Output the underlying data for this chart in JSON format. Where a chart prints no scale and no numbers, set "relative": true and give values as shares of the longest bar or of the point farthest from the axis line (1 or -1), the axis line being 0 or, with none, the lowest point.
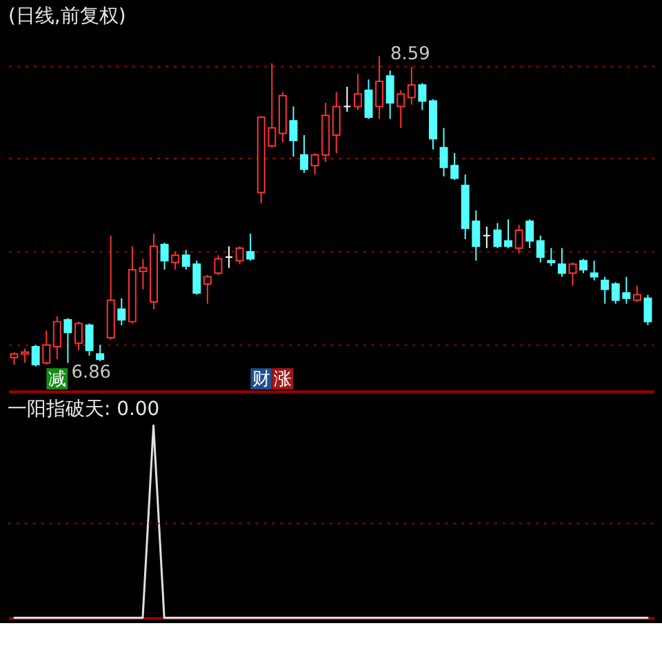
{
  "chart_data": [
    {
      "type": "candlestick",
      "title": "(日线,前复权)",
      "categories": [
        null,
        null,
        null,
        null,
        null,
        null,
        null,
        null,
        null,
        null,
        null,
        null,
        null,
        null,
        null,
        null,
        null,
        null,
        null,
        null,
        null,
        null,
        null,
        null,
        null,
        null,
        null,
        null,
        null,
        null,
        null,
        null,
        null,
        null,
        null,
        null,
        null,
        null,
        null,
        null,
        null,
        null,
        null,
        null,
        null,
        null,
        null,
        null,
        null,
        null,
        null,
        null,
        null,
        null,
        null,
        null,
        null,
        null,
        null,
        null
      ],
      "ohlc": [
        [
          6.91,
          6.94,
          6.87,
          6.93
        ],
        [
          6.93,
          6.96,
          6.88,
          6.94
        ],
        [
          6.97,
          6.98,
          6.86,
          6.87
        ],
        [
          6.88,
          7.06,
          6.87,
          6.98
        ],
        [
          6.97,
          7.14,
          6.9,
          7.11
        ],
        [
          7.12,
          7.13,
          6.88,
          7.05
        ],
        [
          6.99,
          7.11,
          6.95,
          7.1
        ],
        [
          7.09,
          7.1,
          6.92,
          6.95
        ],
        [
          6.93,
          6.98,
          6.89,
          6.9
        ],
        [
          7.02,
          7.59,
          7.01,
          7.23
        ],
        [
          7.18,
          7.24,
          7.09,
          7.12
        ],
        [
          7.11,
          7.53,
          7.1,
          7.4
        ],
        [
          7.39,
          7.46,
          7.29,
          7.41
        ],
        [
          7.22,
          7.6,
          7.18,
          7.53
        ],
        [
          7.54,
          7.55,
          7.4,
          7.45
        ],
        [
          7.44,
          7.5,
          7.4,
          7.48
        ],
        [
          7.48,
          7.51,
          7.4,
          7.42
        ],
        [
          7.43,
          7.45,
          7.26,
          7.27
        ],
        [
          7.32,
          7.37,
          7.21,
          7.36
        ],
        [
          7.38,
          7.48,
          7.37,
          7.46
        ],
        [
          7.47,
          7.53,
          7.41,
          7.47
        ],
        [
          7.45,
          7.53,
          7.43,
          7.52
        ],
        [
          7.5,
          7.6,
          7.45,
          7.46
        ],
        [
          7.83,
          8.25,
          7.77,
          8.25
        ],
        [
          8.09,
          8.55,
          8.08,
          8.19
        ],
        [
          8.16,
          8.39,
          8.11,
          8.37
        ],
        [
          8.23,
          8.31,
          8.03,
          8.12
        ],
        [
          8.04,
          8.15,
          7.94,
          7.96
        ],
        [
          7.98,
          8.05,
          7.93,
          8.04
        ],
        [
          8.04,
          8.33,
          8.0,
          8.26
        ],
        [
          8.15,
          8.39,
          8.05,
          8.31
        ],
        [
          8.31,
          8.42,
          8.28,
          8.31
        ],
        [
          8.31,
          8.49,
          8.29,
          8.38
        ],
        [
          8.4,
          8.46,
          8.24,
          8.25
        ],
        [
          8.31,
          8.59,
          8.24,
          8.45
        ],
        [
          8.48,
          8.51,
          8.24,
          8.33
        ],
        [
          8.31,
          8.4,
          8.19,
          8.38
        ],
        [
          8.36,
          8.53,
          8.32,
          8.43
        ],
        [
          8.43,
          8.44,
          8.29,
          8.34
        ],
        [
          8.34,
          8.35,
          8.07,
          8.13
        ],
        [
          8.08,
          8.19,
          7.92,
          7.97
        ],
        [
          7.98,
          8.05,
          7.9,
          7.91
        ],
        [
          7.87,
          7.93,
          7.57,
          7.63
        ],
        [
          7.67,
          7.73,
          7.45,
          7.53
        ],
        [
          7.59,
          7.64,
          7.52,
          7.59
        ],
        [
          7.62,
          7.66,
          7.52,
          7.53
        ],
        [
          7.56,
          7.68,
          7.52,
          7.53
        ],
        [
          7.52,
          7.65,
          7.49,
          7.62
        ],
        [
          7.67,
          7.68,
          7.52,
          7.56
        ],
        [
          7.56,
          7.59,
          7.44,
          7.47
        ],
        [
          7.45,
          7.52,
          7.42,
          7.44
        ],
        [
          7.43,
          7.52,
          7.36,
          7.38
        ],
        [
          7.38,
          7.44,
          7.31,
          7.43
        ],
        [
          7.45,
          7.46,
          7.38,
          7.4
        ],
        [
          7.38,
          7.45,
          7.34,
          7.36
        ],
        [
          7.34,
          7.36,
          7.21,
          7.29
        ],
        [
          7.32,
          7.33,
          7.21,
          7.23
        ],
        [
          7.27,
          7.36,
          7.21,
          7.24
        ],
        [
          7.23,
          7.31,
          7.22,
          7.26
        ],
        [
          7.24,
          7.26,
          7.09,
          7.11
        ]
      ],
      "colors": [
        "#ff3232",
        "#ff3232",
        "#54ffff",
        "#ff3232",
        "#ff3232",
        "#54ffff",
        "#ff3232",
        "#54ffff",
        "#54ffff",
        "#ff3232",
        "#54ffff",
        "#ff3232",
        "#ff3232",
        "#ff3232",
        "#54ffff",
        "#ff3232",
        "#54ffff",
        "#54ffff",
        "#ff3232",
        "#ff3232",
        "#ffffff",
        "#ff3232",
        "#54ffff",
        "#ff3232",
        "#ff3232",
        "#ff3232",
        "#54ffff",
        "#54ffff",
        "#ff3232",
        "#ff3232",
        "#ff3232",
        "#ffffff",
        "#ff3232",
        "#54ffff",
        "#ff3232",
        "#54ffff",
        "#ff3232",
        "#ff3232",
        "#54ffff",
        "#54ffff",
        "#54ffff",
        "#54ffff",
        "#54ffff",
        "#54ffff",
        "#ffffff",
        "#54ffff",
        "#54ffff",
        "#ff3232",
        "#54ffff",
        "#54ffff",
        "#54ffff",
        "#54ffff",
        "#ff3232",
        "#54ffff",
        "#54ffff",
        "#54ffff",
        "#54ffff",
        "#54ffff",
        "#ff3232",
        "#54ffff"
      ],
      "yticks": [
        {
          "value": 6.98,
          "label": null
        },
        {
          "value": 7.5,
          "label": null
        },
        {
          "value": 8.02,
          "label": null
        },
        {
          "value": 8.54,
          "label": null
        }
      ],
      "grid": "y",
      "tick_labels": false,
      "annotations": [
        "8.59",
        "6.86",
        "减",
        "财",
        "涨"
      ]
    },
    {
      "type": "line",
      "title": "一阳指破天: 0.00",
      "relative": true,
      "categories": [
        null,
        null,
        null,
        null,
        null,
        null,
        null,
        null,
        null,
        null,
        null,
        null,
        null,
        null,
        null,
        null,
        null,
        null,
        null,
        null,
        null,
        null,
        null,
        null,
        null,
        null,
        null,
        null,
        null,
        null,
        null,
        null,
        null,
        null,
        null,
        null,
        null,
        null,
        null,
        null,
        null,
        null,
        null,
        null,
        null,
        null,
        null,
        null,
        null,
        null,
        null,
        null,
        null,
        null,
        null,
        null,
        null,
        null,
        null,
        null
      ],
      "series": [
        {
          "color": "#e0e0e0",
          "values": [
            0,
            0,
            0,
            0,
            0,
            0,
            0,
            0,
            0,
            0,
            0,
            0,
            0,
            1,
            0,
            0,
            0,
            0,
            0,
            0,
            0,
            0,
            0,
            0,
            0,
            0,
            0,
            0,
            0,
            0,
            0,
            0,
            0,
            0,
            0,
            0,
            0,
            0,
            0,
            0,
            0,
            0,
            0,
            0,
            0,
            0,
            0,
            0,
            0,
            0,
            0,
            0,
            0,
            0,
            0,
            0,
            0,
            0,
            0,
            0
          ]
        }
      ],
      "ref_lines": [
        {
          "axis": "y",
          "value": 0.49,
          "color": "#a00000",
          "line_style": "dotted"
        }
      ],
      "tick_labels": false
    }
  ]
}
